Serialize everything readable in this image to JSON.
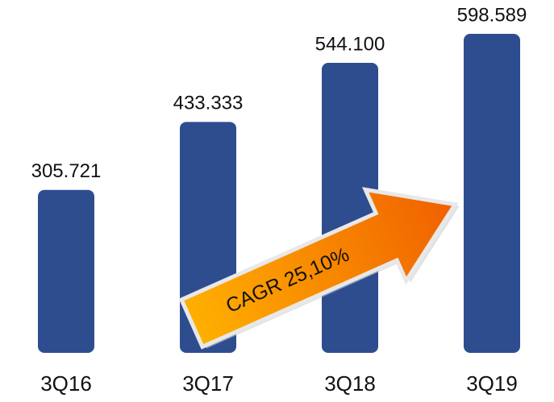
{
  "chart_data": {
    "type": "bar",
    "categories": [
      "3Q16",
      "3Q17",
      "3Q18",
      "3Q19"
    ],
    "values": [
      305721,
      433333,
      544100,
      598589
    ],
    "value_labels": [
      "305.721",
      "433.333",
      "544.100",
      "598.589"
    ],
    "color": "#2e4d8f",
    "annotation": "CAGR 25,10%"
  }
}
